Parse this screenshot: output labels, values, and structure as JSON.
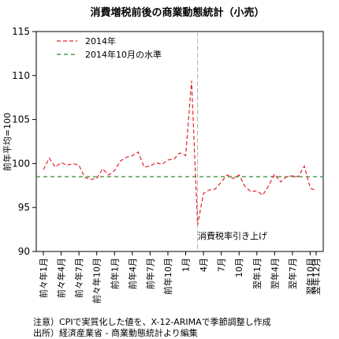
{
  "chart_data": {
    "type": "line",
    "title": "消費増税前後の商業動態統計（小売）",
    "ylabel": "前年平均=100",
    "ylim": [
      90,
      115
    ],
    "yticks": [
      90,
      95,
      100,
      105,
      110,
      115
    ],
    "x_tick_labels": [
      "前々年1月",
      "前々年4月",
      "前々年7月",
      "前々年10月",
      "前年1月",
      "前年4月",
      "前年7月",
      "前年10月",
      "1月",
      "4月",
      "7月",
      "10月",
      "翌年1月",
      "翌年4月",
      "翌年7月",
      "翌年10月",
      "翌年12月"
    ],
    "legend_position": "top-left",
    "series": [
      {
        "name": "2014年",
        "color": "#e8212b",
        "style": "dashed",
        "values": [
          99.3,
          100.6,
          99.6,
          100.1,
          99.8,
          100.0,
          99.8,
          98.4,
          98.2,
          98.3,
          99.4,
          98.7,
          99.2,
          100.3,
          100.7,
          100.9,
          101.3,
          99.6,
          99.7,
          100.1,
          99.9,
          100.4,
          100.5,
          101.2,
          100.9,
          109.4,
          93.0,
          96.6,
          97.0,
          97.1,
          97.9,
          98.7,
          98.3,
          98.7,
          97.4,
          96.8,
          96.9,
          96.4,
          97.5,
          98.8,
          97.9,
          98.5,
          98.6,
          98.5,
          99.7,
          97.2,
          96.9
        ]
      },
      {
        "name": "2014年10月の水準",
        "color": "#2e8b2e",
        "style": "dashed",
        "values": [
          98.5
        ]
      }
    ],
    "vline_index": 26,
    "annotation": "消費税率引き上げ"
  },
  "notes": {
    "note1": "注意）CPIで実質化した値を、X-12-ARIMAで季節調整し作成",
    "note2": "出所）経済産業省 - 商業動態統計より編集"
  }
}
